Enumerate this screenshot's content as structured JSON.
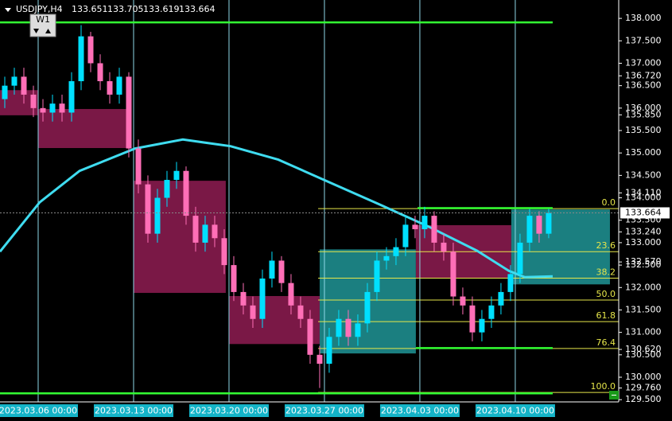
{
  "chart_data": {
    "type": "candlestick",
    "title": "USDJPY,H4",
    "header_values": [
      133.651,
      133.705,
      133.619,
      133.664
    ],
    "period_button": "W1",
    "up_color": "#00e0ff",
    "down_color": "#ff6fb7",
    "xlim": [
      -2,
      30.42
    ],
    "ylim": [
      129.45,
      138.41
    ],
    "xticks": [
      {
        "value": 0,
        "label": "2023.03.06 00:00"
      },
      {
        "value": 5,
        "label": "2023.03.13 00:00"
      },
      {
        "value": 10,
        "label": "2023.03.20 00:00"
      },
      {
        "value": 15,
        "label": "2023.03.27 00:00"
      },
      {
        "value": 20,
        "label": "2023.04.03 00:00"
      },
      {
        "value": 25,
        "label": "2023.04.10 00:00"
      }
    ],
    "yticks": [
      {
        "value": 138.0,
        "label": "138.000"
      },
      {
        "value": 137.5,
        "label": "137.500"
      },
      {
        "value": 137.0,
        "label": "137.000"
      },
      {
        "value": 136.72,
        "label": "136.720"
      },
      {
        "value": 136.5,
        "label": "136.500"
      },
      {
        "value": 136.0,
        "label": "136.000"
      },
      {
        "value": 135.85,
        "label": "135.850"
      },
      {
        "value": 135.5,
        "label": "135.500"
      },
      {
        "value": 135.0,
        "label": "135.000"
      },
      {
        "value": 134.5,
        "label": "134.500"
      },
      {
        "value": 134.11,
        "label": "134.110"
      },
      {
        "value": 134.0,
        "label": "134.000"
      },
      {
        "value": 133.5,
        "label": "133.500"
      },
      {
        "value": 133.24,
        "label": "133.240"
      },
      {
        "value": 133.0,
        "label": "133.000"
      },
      {
        "value": 132.57,
        "label": "132.570"
      },
      {
        "value": 132.5,
        "label": "132.500"
      },
      {
        "value": 132.0,
        "label": "132.000"
      },
      {
        "value": 131.5,
        "label": "131.500"
      },
      {
        "value": 131.0,
        "label": "131.000"
      },
      {
        "value": 130.62,
        "label": "130.620"
      },
      {
        "value": 130.5,
        "label": "130.500"
      },
      {
        "value": 130.0,
        "label": "130.000"
      },
      {
        "value": 129.76,
        "label": "129.760"
      },
      {
        "value": 129.5,
        "label": "129.500"
      }
    ],
    "current_price": 133.664,
    "x": [
      -1.75,
      -1.25,
      -0.75,
      -0.25,
      0.25,
      0.75,
      1.25,
      1.75,
      2.25,
      2.75,
      3.25,
      3.75,
      4.25,
      4.75,
      5.25,
      5.75,
      6.25,
      6.75,
      7.25,
      7.75,
      8.25,
      8.75,
      9.25,
      9.75,
      10.25,
      10.75,
      11.25,
      11.75,
      12.25,
      12.75,
      13.25,
      13.75,
      14.25,
      14.75,
      15.25,
      15.75,
      16.25,
      16.75,
      17.25,
      17.75,
      18.25,
      18.75,
      19.25,
      19.75,
      20.25,
      20.75,
      21.25,
      21.75,
      22.25,
      22.75,
      23.25,
      23.75,
      24.25,
      24.75,
      25.25,
      25.75,
      26.25,
      26.75
    ],
    "open": [
      136.2,
      136.5,
      136.7,
      136.3,
      136.0,
      135.9,
      136.1,
      135.9,
      136.6,
      137.6,
      137.0,
      136.6,
      136.3,
      136.7,
      135.1,
      134.3,
      133.2,
      134.0,
      134.4,
      134.6,
      133.6,
      133.0,
      133.4,
      133.1,
      132.5,
      131.9,
      131.6,
      131.3,
      132.2,
      132.6,
      132.1,
      131.6,
      131.3,
      130.5,
      130.3,
      130.9,
      131.3,
      130.9,
      131.2,
      131.9,
      132.6,
      132.7,
      132.9,
      133.4,
      133.3,
      133.6,
      133.0,
      132.8,
      131.8,
      131.6,
      131.0,
      131.3,
      131.6,
      131.9,
      132.3,
      133.0,
      133.6,
      133.2
    ],
    "high": [
      136.7,
      136.9,
      136.9,
      136.5,
      136.2,
      136.3,
      136.3,
      136.8,
      137.85,
      137.7,
      137.2,
      136.8,
      136.9,
      136.8,
      135.3,
      134.5,
      134.2,
      134.6,
      134.8,
      134.7,
      133.8,
      133.6,
      133.6,
      133.3,
      132.7,
      132.1,
      131.8,
      132.4,
      132.8,
      132.7,
      132.3,
      131.8,
      131.5,
      130.7,
      131.1,
      131.5,
      131.5,
      131.4,
      132.1,
      132.8,
      132.9,
      133.1,
      133.6,
      133.6,
      133.8,
      133.7,
      133.2,
      133.0,
      132.0,
      131.8,
      131.5,
      131.8,
      132.1,
      132.5,
      133.2,
      133.75,
      133.7,
      133.75
    ],
    "low": [
      136.0,
      136.3,
      136.1,
      135.8,
      135.7,
      135.7,
      135.7,
      135.7,
      136.4,
      136.8,
      136.4,
      136.1,
      136.1,
      134.9,
      134.1,
      133.0,
      133.0,
      133.8,
      134.2,
      133.4,
      132.8,
      132.8,
      132.9,
      132.3,
      131.7,
      131.4,
      131.1,
      131.1,
      132.0,
      131.9,
      131.4,
      131.1,
      130.3,
      129.76,
      130.1,
      130.7,
      130.7,
      130.7,
      131.0,
      131.7,
      132.4,
      132.5,
      132.7,
      133.1,
      133.1,
      132.8,
      132.6,
      131.6,
      131.4,
      130.8,
      130.8,
      131.1,
      131.4,
      131.7,
      132.1,
      132.8,
      133.0,
      133.1
    ],
    "close": [
      136.5,
      136.7,
      136.3,
      136.0,
      135.9,
      136.1,
      135.9,
      136.6,
      137.6,
      137.0,
      136.6,
      136.3,
      136.7,
      135.1,
      134.3,
      133.2,
      134.0,
      134.4,
      134.6,
      133.6,
      133.0,
      133.4,
      133.1,
      132.5,
      131.9,
      131.6,
      131.3,
      132.2,
      132.6,
      132.1,
      131.6,
      131.3,
      130.5,
      130.3,
      130.9,
      131.3,
      130.9,
      131.2,
      131.9,
      132.6,
      132.7,
      132.9,
      133.4,
      133.3,
      133.6,
      133.0,
      132.8,
      131.8,
      131.6,
      131.0,
      131.3,
      131.6,
      131.9,
      132.3,
      133.0,
      133.6,
      133.2,
      133.664
    ],
    "moving_average": {
      "color": "#3fdcf0",
      "x": [
        -2,
        0.08,
        2.17,
        5.08,
        7.58,
        10.08,
        12.58,
        15.5,
        18.0,
        20.5,
        23.0,
        24.67,
        25.5,
        26.96
      ],
      "values": [
        132.8,
        133.9,
        134.6,
        135.1,
        135.3,
        135.15,
        134.85,
        134.3,
        133.83,
        133.35,
        132.82,
        132.37,
        132.23,
        132.25
      ]
    },
    "zones": [
      {
        "x": [
          -2,
          0
        ],
        "y": [
          136.4,
          135.84
        ],
        "color": "#7a1846"
      },
      {
        "x": [
          0,
          4.67
        ],
        "y": [
          135.98,
          135.11
        ],
        "color": "#7a1846"
      },
      {
        "x": [
          5,
          9.83
        ],
        "y": [
          134.38,
          131.88
        ],
        "color": "#7a1846"
      },
      {
        "x": [
          10,
          14.75
        ],
        "y": [
          131.81,
          130.74
        ],
        "color": "#7a1846"
      },
      {
        "x": [
          14.75,
          19.79
        ],
        "y": [
          132.85,
          130.53
        ],
        "color": "#1b7f80"
      },
      {
        "x": [
          19.79,
          24.79
        ],
        "y": [
          133.39,
          132.2
        ],
        "color": "#7a1846"
      },
      {
        "x": [
          24.79,
          29.96
        ],
        "y": [
          133.74,
          132.07
        ],
        "color": "#1b7f80"
      }
    ],
    "fibonacci": {
      "color": "#e6e64a",
      "x": [
        14.67,
        30.42
      ],
      "levels": [
        {
          "label": "0.0",
          "value": 133.76
        },
        {
          "label": "23.6",
          "value": 132.8
        },
        {
          "label": "38.2",
          "value": 132.21
        },
        {
          "label": "50.0",
          "value": 131.72
        },
        {
          "label": "61.8",
          "value": 131.24
        },
        {
          "label": "76.4",
          "value": 130.64
        },
        {
          "label": "100.0",
          "value": 129.66
        }
      ]
    },
    "hlines": [
      {
        "value": 137.91,
        "x": [
          -2,
          26.96
        ],
        "color": "#33ff33"
      },
      {
        "value": 129.64,
        "x": [
          -2,
          26.96
        ],
        "color": "#33ff33"
      },
      {
        "value": 130.65,
        "x": [
          19.79,
          26.96
        ],
        "color": "#33ff33"
      },
      {
        "value": 133.77,
        "x": [
          19.88,
          26.96
        ],
        "color": "#33ff33"
      }
    ]
  }
}
